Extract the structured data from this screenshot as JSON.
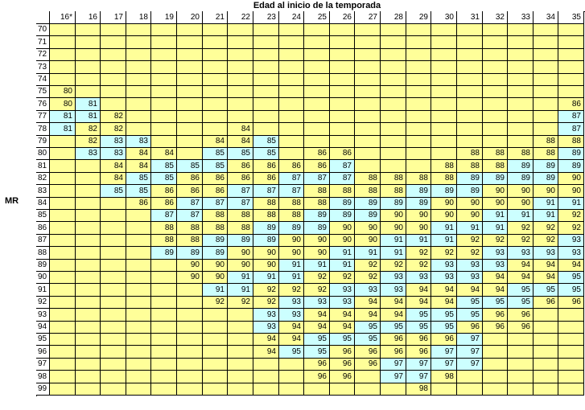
{
  "header": {
    "title": "Edad al inicio de la temporada",
    "row_label": "MR"
  },
  "table": {
    "columns": [
      "16*",
      "16",
      "17",
      "18",
      "19",
      "20",
      "21",
      "22",
      "23",
      "24",
      "25",
      "26",
      "27",
      "28",
      "29",
      "30",
      "31",
      "32",
      "33",
      "34",
      "35"
    ],
    "rows": [
      {
        "label": "70",
        "cells": [
          null,
          null,
          null,
          null,
          null,
          null,
          null,
          null,
          null,
          null,
          null,
          null,
          null,
          null,
          null,
          null,
          null,
          null,
          null,
          null,
          null
        ]
      },
      {
        "label": "71",
        "cells": [
          null,
          null,
          null,
          null,
          null,
          null,
          null,
          null,
          null,
          null,
          null,
          null,
          null,
          null,
          null,
          null,
          null,
          null,
          null,
          null,
          null
        ]
      },
      {
        "label": "72",
        "cells": [
          null,
          null,
          null,
          null,
          null,
          null,
          null,
          null,
          null,
          null,
          null,
          null,
          null,
          null,
          null,
          null,
          null,
          null,
          null,
          null,
          null
        ]
      },
      {
        "label": "73",
        "cells": [
          null,
          null,
          null,
          null,
          null,
          null,
          null,
          null,
          null,
          null,
          null,
          null,
          null,
          null,
          null,
          null,
          null,
          null,
          null,
          null,
          null
        ]
      },
      {
        "label": "74",
        "cells": [
          null,
          null,
          null,
          null,
          null,
          null,
          null,
          null,
          null,
          null,
          null,
          null,
          null,
          null,
          null,
          null,
          null,
          null,
          null,
          null,
          null
        ]
      },
      {
        "label": "75",
        "cells": [
          80,
          null,
          null,
          null,
          null,
          null,
          null,
          null,
          null,
          null,
          null,
          null,
          null,
          null,
          null,
          null,
          null,
          null,
          null,
          null,
          null
        ]
      },
      {
        "label": "76",
        "cells": [
          80,
          81,
          null,
          null,
          null,
          null,
          null,
          null,
          null,
          null,
          null,
          null,
          null,
          null,
          null,
          null,
          null,
          null,
          null,
          null,
          86
        ]
      },
      {
        "label": "77",
        "cells": [
          81,
          81,
          82,
          null,
          null,
          null,
          null,
          null,
          null,
          null,
          null,
          null,
          null,
          null,
          null,
          null,
          null,
          null,
          null,
          null,
          87
        ]
      },
      {
        "label": "78",
        "cells": [
          81,
          82,
          82,
          null,
          null,
          null,
          null,
          84,
          null,
          null,
          null,
          null,
          null,
          null,
          null,
          null,
          null,
          null,
          null,
          null,
          87
        ]
      },
      {
        "label": "79",
        "cells": [
          null,
          82,
          83,
          83,
          null,
          null,
          84,
          84,
          85,
          null,
          null,
          null,
          null,
          null,
          null,
          null,
          null,
          null,
          null,
          88,
          88
        ]
      },
      {
        "label": "80",
        "cells": [
          null,
          83,
          83,
          84,
          84,
          null,
          85,
          85,
          85,
          null,
          86,
          86,
          null,
          null,
          null,
          null,
          88,
          88,
          88,
          88,
          89
        ]
      },
      {
        "label": "81",
        "cells": [
          null,
          null,
          84,
          84,
          85,
          85,
          85,
          86,
          86,
          86,
          86,
          87,
          null,
          null,
          null,
          88,
          88,
          88,
          89,
          89,
          89
        ]
      },
      {
        "label": "82",
        "cells": [
          null,
          null,
          84,
          85,
          85,
          86,
          86,
          86,
          86,
          87,
          87,
          87,
          88,
          88,
          88,
          88,
          89,
          89,
          89,
          89,
          90
        ]
      },
      {
        "label": "83",
        "cells": [
          null,
          null,
          85,
          85,
          86,
          86,
          86,
          87,
          87,
          87,
          88,
          88,
          88,
          88,
          89,
          89,
          89,
          90,
          90,
          90,
          90
        ]
      },
      {
        "label": "84",
        "cells": [
          null,
          null,
          null,
          86,
          86,
          87,
          87,
          87,
          88,
          88,
          88,
          89,
          89,
          89,
          89,
          90,
          90,
          90,
          90,
          91,
          91
        ]
      },
      {
        "label": "85",
        "cells": [
          null,
          null,
          null,
          null,
          87,
          87,
          88,
          88,
          88,
          88,
          89,
          89,
          89,
          90,
          90,
          90,
          90,
          91,
          91,
          91,
          92
        ]
      },
      {
        "label": "86",
        "cells": [
          null,
          null,
          null,
          null,
          88,
          88,
          88,
          88,
          89,
          89,
          89,
          90,
          90,
          90,
          90,
          91,
          91,
          91,
          92,
          92,
          92
        ]
      },
      {
        "label": "87",
        "cells": [
          null,
          null,
          null,
          null,
          88,
          88,
          89,
          89,
          89,
          90,
          90,
          90,
          90,
          91,
          91,
          91,
          92,
          92,
          92,
          92,
          93
        ]
      },
      {
        "label": "88",
        "cells": [
          null,
          null,
          null,
          null,
          89,
          89,
          89,
          90,
          90,
          90,
          90,
          91,
          91,
          91,
          92,
          92,
          92,
          93,
          93,
          93,
          93
        ]
      },
      {
        "label": "89",
        "cells": [
          null,
          null,
          null,
          null,
          null,
          90,
          90,
          90,
          90,
          91,
          91,
          91,
          92,
          92,
          92,
          93,
          93,
          93,
          94,
          94,
          94
        ]
      },
      {
        "label": "90",
        "cells": [
          null,
          null,
          null,
          null,
          null,
          90,
          90,
          91,
          91,
          91,
          92,
          92,
          92,
          93,
          93,
          93,
          93,
          94,
          94,
          94,
          95
        ]
      },
      {
        "label": "91",
        "cells": [
          null,
          null,
          null,
          null,
          null,
          null,
          91,
          91,
          92,
          92,
          92,
          93,
          93,
          93,
          94,
          94,
          94,
          94,
          95,
          95,
          95
        ]
      },
      {
        "label": "92",
        "cells": [
          null,
          null,
          null,
          null,
          null,
          null,
          92,
          92,
          92,
          93,
          93,
          93,
          94,
          94,
          94,
          94,
          95,
          95,
          95,
          96,
          96
        ]
      },
      {
        "label": "93",
        "cells": [
          null,
          null,
          null,
          null,
          null,
          null,
          null,
          null,
          93,
          93,
          94,
          94,
          94,
          94,
          95,
          95,
          95,
          96,
          96,
          null,
          null
        ]
      },
      {
        "label": "94",
        "cells": [
          null,
          null,
          null,
          null,
          null,
          null,
          null,
          null,
          93,
          94,
          94,
          94,
          95,
          95,
          95,
          95,
          96,
          96,
          96,
          null,
          null
        ]
      },
      {
        "label": "95",
        "cells": [
          null,
          null,
          null,
          null,
          null,
          null,
          null,
          null,
          94,
          94,
          95,
          95,
          95,
          96,
          96,
          96,
          97,
          null,
          null,
          null,
          null
        ]
      },
      {
        "label": "96",
        "cells": [
          null,
          null,
          null,
          null,
          null,
          null,
          null,
          null,
          94,
          95,
          95,
          96,
          96,
          96,
          96,
          97,
          97,
          null,
          null,
          null,
          null
        ]
      },
      {
        "label": "97",
        "cells": [
          null,
          null,
          null,
          null,
          null,
          null,
          null,
          null,
          null,
          null,
          96,
          96,
          96,
          97,
          97,
          97,
          97,
          null,
          null,
          null,
          null
        ]
      },
      {
        "label": "98",
        "cells": [
          null,
          null,
          null,
          null,
          null,
          null,
          null,
          null,
          null,
          null,
          96,
          96,
          null,
          97,
          97,
          98,
          null,
          null,
          null,
          null,
          null
        ]
      },
      {
        "label": "99",
        "cells": [
          null,
          null,
          null,
          null,
          null,
          null,
          null,
          null,
          null,
          null,
          null,
          null,
          null,
          null,
          98,
          null,
          null,
          null,
          null,
          null,
          null
        ]
      }
    ]
  }
}
